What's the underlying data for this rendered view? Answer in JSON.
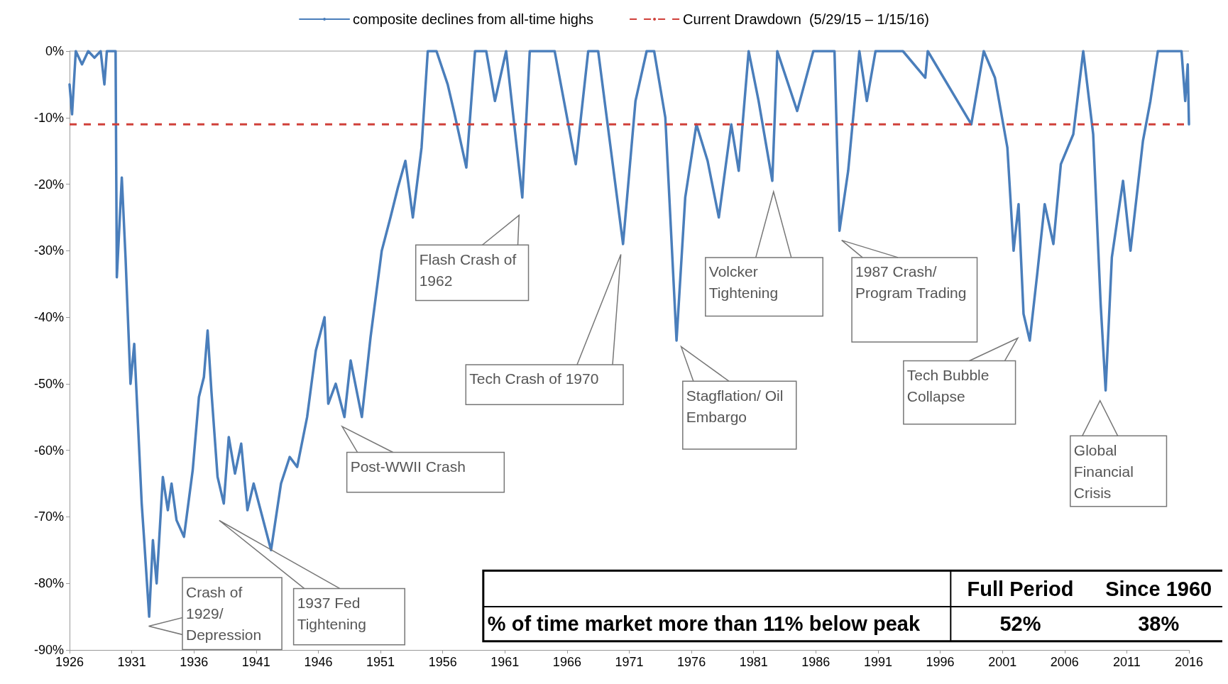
{
  "chart_data": {
    "type": "line",
    "legend": "top",
    "grid": false,
    "marker": "none",
    "line_style": "solid",
    "xlim": [
      1926,
      2016
    ],
    "xticks": [
      1926,
      1931,
      1936,
      1941,
      1946,
      1951,
      1956,
      1961,
      1966,
      1971,
      1976,
      1981,
      1986,
      1991,
      1996,
      2001,
      2006,
      2011,
      2016
    ],
    "ylim": [
      -90,
      0
    ],
    "yticks": [
      {
        "value": -90,
        "label": "-90%"
      },
      {
        "value": -80,
        "label": "-80%"
      },
      {
        "value": -70,
        "label": "-70%"
      },
      {
        "value": -60,
        "label": "-60%"
      },
      {
        "value": -50,
        "label": "-50%"
      },
      {
        "value": -40,
        "label": "-40%"
      },
      {
        "value": -30,
        "label": "-30%"
      },
      {
        "value": -20,
        "label": "-20%"
      },
      {
        "value": -10,
        "label": "-10%"
      },
      {
        "value": 0,
        "label": "0%"
      }
    ],
    "series": [
      {
        "name": "composite declines from all-time highs",
        "color": "#4a7ebb",
        "x": [
          1926.0,
          1926.2,
          1926.5,
          1927,
          1927.5,
          1928,
          1928.5,
          1928.8,
          1929,
          1929.7,
          1929.8,
          1930.2,
          1930.5,
          1930.9,
          1931.2,
          1931.5,
          1931.8,
          1932.0,
          1932.4,
          1932.7,
          1933.0,
          1933.5,
          1933.9,
          1934.2,
          1934.6,
          1935.2,
          1935.9,
          1936.4,
          1936.8,
          1937.1,
          1937.4,
          1937.9,
          1938.4,
          1938.8,
          1939.3,
          1939.8,
          1940.3,
          1940.8,
          1941.5,
          1942.2,
          1943.0,
          1943.7,
          1944.3,
          1945.1,
          1945.8,
          1946.5,
          1946.8,
          1947.4,
          1948.1,
          1948.6,
          1949.5,
          1950.2,
          1951.1,
          1951.8,
          1952.4,
          1953.0,
          1953.6,
          1954.3,
          1954.8,
          1955.5,
          1956.4,
          1956.9,
          1957.9,
          1958.6,
          1959.5,
          1960.2,
          1961.1,
          1962.4,
          1963.0,
          1964,
          1965,
          1966.7,
          1967.7,
          1968.5,
          1970.5,
          1971.5,
          1972.4,
          1973.0,
          1973.9,
          1974.8,
          1975.5,
          1976.4,
          1977.3,
          1978.2,
          1979.2,
          1979.8,
          1980.6,
          1981.4,
          1982.5,
          1982.9,
          1984.5,
          1985.8,
          1987.5,
          1987.9,
          1988.6,
          1989.5,
          1990.1,
          1990.8,
          1993,
          1994.8,
          1995,
          1998.5,
          1999.5,
          2000.4,
          2001.4,
          2001.9,
          2002.3,
          2002.7,
          2003.2,
          2003.8,
          2004.4,
          2005.1,
          2005.7,
          2006.7,
          2007.5,
          2008.3,
          2008.9,
          2009.3,
          2009.8,
          2010.7,
          2011.3,
          2012.3,
          2012.9,
          2013.5,
          2014.5,
          2015.4,
          2015.7,
          2015.9,
          2016.0
        ],
        "values": [
          -5,
          -9.5,
          0,
          -2,
          0,
          -1,
          0,
          -5,
          0,
          0,
          -34,
          -19,
          -31,
          -50,
          -44,
          -56,
          -68,
          -73.5,
          -85,
          -73.5,
          -80,
          -64,
          -69,
          -65,
          -70.5,
          -73,
          -63,
          -52,
          -49,
          -42,
          -51,
          -64,
          -68,
          -58,
          -63.5,
          -59,
          -69,
          -65,
          -70,
          -75,
          -65,
          -61,
          -62.5,
          -55,
          -45,
          -40,
          -53,
          -50,
          -55,
          -46.5,
          -55,
          -43,
          -30,
          -25,
          -20.5,
          -16.5,
          -25,
          -14.5,
          0,
          0,
          -5,
          -9,
          -17.5,
          0,
          0,
          -7.5,
          0,
          -22,
          0,
          0,
          0,
          -17,
          0,
          0,
          -29,
          -7.5,
          0,
          0,
          -10,
          -43.5,
          -22,
          -11,
          -16.5,
          -25,
          -11,
          -18,
          0,
          -7.5,
          -19.5,
          0,
          -9,
          0,
          0,
          -27,
          -18,
          0,
          -7.5,
          0,
          0,
          -4,
          0,
          -11,
          0,
          -4,
          -14.5,
          -30,
          -23,
          -39.5,
          -43.5,
          -33.5,
          -23,
          -29,
          -17,
          -12.5,
          0,
          -12.5,
          -38,
          -51,
          -31,
          -19.5,
          -30,
          -13.5,
          -7.5,
          0,
          0,
          0,
          -7.5,
          -2,
          -11
        ]
      }
    ],
    "ref_lines": [
      {
        "axis": "y",
        "value": -11,
        "label": "Current Drawdown  (5/29/15 – 1/15/16)",
        "color": "#d0403a",
        "line_style": "dashed"
      }
    ],
    "annotations": [
      "Crash of 1929/ Depression",
      "1937 Fed Tightening",
      "Post-WWII Crash",
      "Flash Crash of 1962",
      "Tech Crash of 1970",
      "Stagflation/ Oil Embargo",
      "Volcker Tightening",
      "1987 Crash/ Program Trading",
      "Tech Bubble Collapse",
      "Global Financial Crisis",
      "Full Period",
      "Since 1960",
      "% of time market more than 11% below peak",
      "52%",
      "38%"
    ]
  }
}
